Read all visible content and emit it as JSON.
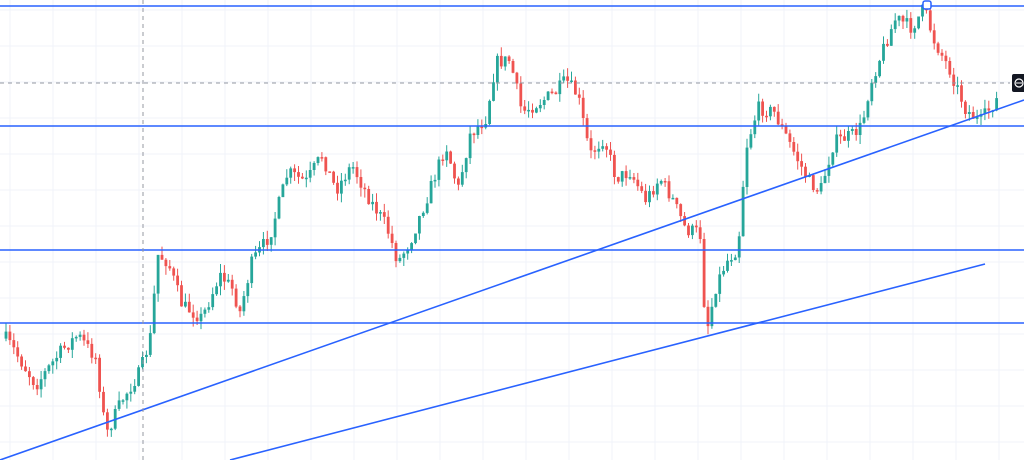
{
  "chart_data": {
    "type": "candlestick",
    "title": "",
    "xlabel": "",
    "ylabel": "",
    "x_tick_labels": [],
    "y_tick_labels": [],
    "ylim": [
      0,
      460
    ],
    "grid": true,
    "colors": {
      "up": "#26a69a",
      "down": "#ef5350",
      "drawing_line": "#2962ff",
      "grid": "#f0f3fa",
      "crosshair": "#9598a1",
      "background": "#ffffff",
      "badge": "#131722"
    },
    "horizontal_levels": [
      6,
      126,
      250,
      323
    ],
    "trend_lines": [
      {
        "from": [
          0,
          460
        ],
        "to": [
          1024,
          100
        ]
      },
      {
        "from": [
          230,
          460
        ],
        "to": [
          985,
          264
        ]
      }
    ],
    "crosshair": {
      "x": 143,
      "y": 83
    },
    "endpoint_marker": {
      "x": 927,
      "y": 5
    },
    "price_badge_icon": "crosshair-icon",
    "anchors": [
      [
        0,
        330
      ],
      [
        14,
        350
      ],
      [
        36,
        385
      ],
      [
        62,
        350
      ],
      [
        78,
        335
      ],
      [
        96,
        358
      ],
      [
        106,
        435
      ],
      [
        122,
        400
      ],
      [
        140,
        372
      ],
      [
        150,
        340
      ],
      [
        158,
        255
      ],
      [
        168,
        262
      ],
      [
        182,
        305
      ],
      [
        202,
        318
      ],
      [
        220,
        275
      ],
      [
        232,
        288
      ],
      [
        240,
        312
      ],
      [
        252,
        262
      ],
      [
        270,
        235
      ],
      [
        288,
        172
      ],
      [
        306,
        182
      ],
      [
        322,
        155
      ],
      [
        336,
        190
      ],
      [
        352,
        165
      ],
      [
        370,
        200
      ],
      [
        386,
        225
      ],
      [
        398,
        262
      ],
      [
        410,
        242
      ],
      [
        428,
        195
      ],
      [
        446,
        145
      ],
      [
        458,
        190
      ],
      [
        470,
        135
      ],
      [
        486,
        118
      ],
      [
        496,
        62
      ],
      [
        510,
        60
      ],
      [
        522,
        112
      ],
      [
        540,
        102
      ],
      [
        556,
        92
      ],
      [
        566,
        80
      ],
      [
        578,
        96
      ],
      [
        590,
        155
      ],
      [
        604,
        138
      ],
      [
        616,
        178
      ],
      [
        630,
        172
      ],
      [
        646,
        200
      ],
      [
        660,
        178
      ],
      [
        672,
        198
      ],
      [
        686,
        230
      ],
      [
        700,
        232
      ],
      [
        706,
        334
      ],
      [
        716,
        286
      ],
      [
        726,
        262
      ],
      [
        738,
        248
      ],
      [
        746,
        148
      ],
      [
        758,
        108
      ],
      [
        774,
        112
      ],
      [
        788,
        140
      ],
      [
        808,
        180
      ],
      [
        820,
        192
      ],
      [
        834,
        142
      ],
      [
        852,
        135
      ],
      [
        862,
        126
      ],
      [
        870,
        85
      ],
      [
        882,
        52
      ],
      [
        896,
        18
      ],
      [
        912,
        28
      ],
      [
        924,
        8
      ],
      [
        934,
        40
      ],
      [
        950,
        70
      ],
      [
        966,
        110
      ],
      [
        980,
        122
      ],
      [
        996,
        100
      ]
    ]
  }
}
